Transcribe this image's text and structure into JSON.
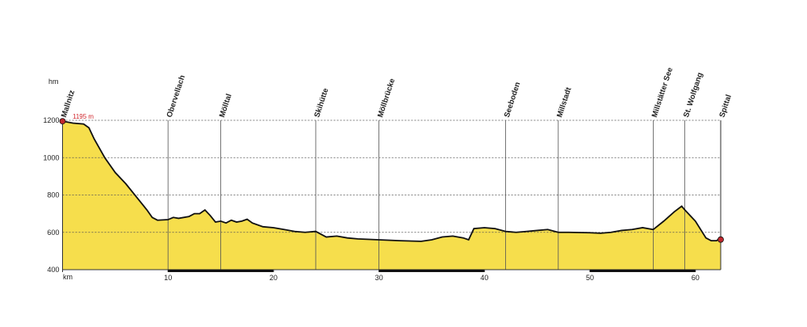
{
  "chart_data": {
    "type": "area",
    "y_label": "hm",
    "x_label": "km",
    "annotation": "1195 m",
    "color": "#f6de4c",
    "x": [
      0,
      1,
      2,
      2.5,
      3,
      4,
      5,
      6,
      7,
      8,
      8.5,
      9,
      10,
      10.5,
      11,
      12,
      12.5,
      13,
      13.5,
      14,
      14.5,
      15,
      15.5,
      16,
      16.5,
      17,
      17.5,
      18,
      19,
      20,
      21,
      22,
      23,
      24,
      24.5,
      25,
      26,
      27,
      28,
      30,
      32,
      34,
      35,
      36,
      37,
      38,
      38.5,
      39,
      40,
      41,
      42,
      43,
      44,
      45,
      46,
      47,
      48,
      50,
      51,
      52,
      53,
      54,
      55,
      55.5,
      56,
      57,
      58,
      58.7,
      59,
      60,
      61,
      61.5,
      62,
      62.4
    ],
    "values": [
      1195,
      1185,
      1180,
      1160,
      1100,
      1000,
      920,
      860,
      790,
      720,
      680,
      665,
      668,
      680,
      675,
      685,
      700,
      700,
      720,
      690,
      655,
      660,
      650,
      665,
      655,
      660,
      670,
      650,
      630,
      625,
      615,
      605,
      600,
      605,
      590,
      575,
      580,
      570,
      565,
      560,
      555,
      552,
      560,
      575,
      580,
      570,
      560,
      620,
      625,
      620,
      605,
      600,
      605,
      610,
      615,
      600,
      600,
      598,
      595,
      600,
      610,
      615,
      625,
      620,
      615,
      660,
      710,
      740,
      720,
      660,
      570,
      555,
      555,
      570
    ],
    "xlim": [
      0,
      62.4
    ],
    "ylim": [
      400,
      1200
    ],
    "xticks": [
      0,
      10,
      20,
      30,
      40,
      50,
      60
    ],
    "yticks": [
      400,
      600,
      800,
      1000,
      1200
    ],
    "grid": true,
    "markers": [
      {
        "label": "Mallnitz",
        "x": 0
      },
      {
        "label": "Obervellach",
        "x": 10
      },
      {
        "label": "Mölltal",
        "x": 15
      },
      {
        "label": "Skihütte",
        "x": 24
      },
      {
        "label": "Möllbrücke",
        "x": 30
      },
      {
        "label": "Seeboden",
        "x": 42
      },
      {
        "label": "Millstadt",
        "x": 47
      },
      {
        "label": "Millstätter See",
        "x": 56
      },
      {
        "label": "St. Wolfgang",
        "x": 59
      },
      {
        "label": "Spittal",
        "x": 62.4
      }
    ]
  }
}
